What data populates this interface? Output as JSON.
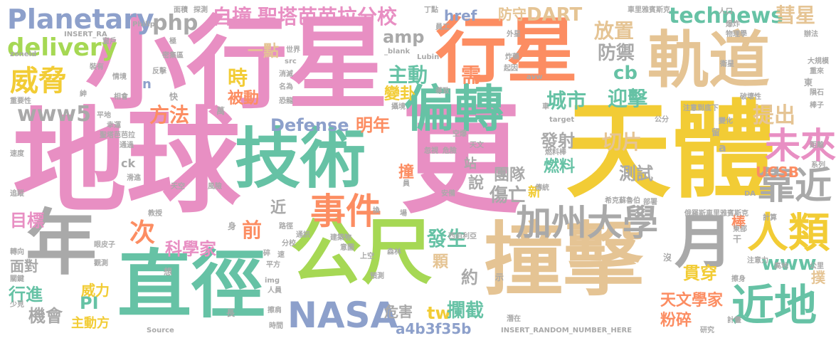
{
  "palette": {
    "pink": "#e88fc3",
    "green": "#66c2a5",
    "yellow": "#f2cc35",
    "orange": "#fc8d62",
    "tan": "#e5c494",
    "gray": "#a9a9a9",
    "blue": "#8da0cb",
    "lime": "#a6d854"
  },
  "words": [
    {
      "id": "w1",
      "text": "地球"
    },
    {
      "id": "w2",
      "text": "小行星"
    },
    {
      "id": "w3",
      "text": "行星"
    },
    {
      "id": "w4",
      "text": "天體"
    },
    {
      "id": "w5",
      "text": "軌道"
    },
    {
      "id": "w6",
      "text": "更"
    },
    {
      "id": "w7",
      "text": "撞擊"
    },
    {
      "id": "w8",
      "text": "公尺"
    },
    {
      "id": "w9",
      "text": "技術"
    },
    {
      "id": "w10",
      "text": "偏轉"
    },
    {
      "id": "w11",
      "text": "直徑"
    },
    {
      "id": "w12",
      "text": "年"
    },
    {
      "id": "w13",
      "text": "月"
    },
    {
      "id": "w14",
      "text": "近地"
    },
    {
      "id": "w15",
      "text": "人類"
    },
    {
      "id": "w16",
      "text": "NASA"
    },
    {
      "id": "w17",
      "text": "加州大學"
    },
    {
      "id": "w18",
      "text": "事件"
    },
    {
      "id": "w19",
      "text": "靠近"
    },
    {
      "id": "w20",
      "text": "未來"
    },
    {
      "id": "w21",
      "text": "Planetary"
    },
    {
      "id": "w22",
      "text": "威脅"
    },
    {
      "id": "w23",
      "text": "delivery"
    },
    {
      "id": "w24",
      "text": "www5"
    },
    {
      "id": "w25",
      "text": "自撞"
    },
    {
      "id": "w26",
      "text": "聖塔芭芭拉分校"
    },
    {
      "id": "w27",
      "text": "php"
    },
    {
      "id": "w28",
      "text": "DART"
    },
    {
      "id": "w29",
      "text": "technews"
    },
    {
      "id": "w30",
      "text": "彗星"
    },
    {
      "id": "w31",
      "text": "放置"
    },
    {
      "id": "w32",
      "text": "防禦"
    },
    {
      "id": "w33",
      "text": "amp"
    },
    {
      "id": "w34",
      "text": "href"
    },
    {
      "id": "w35",
      "text": "防守"
    },
    {
      "id": "w36",
      "text": "一點"
    },
    {
      "id": "w37",
      "text": "主動"
    },
    {
      "id": "w38",
      "text": "需"
    },
    {
      "id": "w39",
      "text": "cb"
    },
    {
      "id": "w40",
      "text": "迎擊"
    },
    {
      "id": "w41",
      "text": "提出"
    },
    {
      "id": "w42",
      "text": "時"
    },
    {
      "id": "w43",
      "text": "被動"
    },
    {
      "id": "w44",
      "text": "變卦"
    },
    {
      "id": "w45",
      "text": "城市"
    },
    {
      "id": "w46",
      "text": "方法"
    },
    {
      "id": "w47",
      "text": "Defense"
    },
    {
      "id": "w48",
      "text": "明年"
    },
    {
      "id": "w49",
      "text": "發射"
    },
    {
      "id": "w50",
      "text": "切片"
    },
    {
      "id": "w51",
      "text": "燃料"
    },
    {
      "id": "w52",
      "text": "測試"
    },
    {
      "id": "w53",
      "text": "團隊"
    },
    {
      "id": "w54",
      "text": "說"
    },
    {
      "id": "w55",
      "text": "傷亡"
    },
    {
      "id": "w56",
      "text": "新"
    },
    {
      "id": "w57",
      "text": "UCSB"
    },
    {
      "id": "w58",
      "text": "前"
    },
    {
      "id": "w59",
      "text": "次"
    },
    {
      "id": "w60",
      "text": "科學家"
    },
    {
      "id": "w61",
      "text": "近"
    },
    {
      "id": "w62",
      "text": "目標"
    },
    {
      "id": "w63",
      "text": "撞"
    },
    {
      "id": "w64",
      "text": "站"
    },
    {
      "id": "w65",
      "text": "發生"
    },
    {
      "id": "w66",
      "text": "顆"
    },
    {
      "id": "w67",
      "text": "約"
    },
    {
      "id": "w68",
      "text": "棒"
    },
    {
      "id": "w69",
      "text": "貫穿"
    },
    {
      "id": "w70",
      "text": "www"
    },
    {
      "id": "w71",
      "text": "撲"
    },
    {
      "id": "w72",
      "text": "天文學家"
    },
    {
      "id": "w73",
      "text": "粉碎"
    },
    {
      "id": "w74",
      "text": "危害"
    },
    {
      "id": "w75",
      "text": "tw"
    },
    {
      "id": "w76",
      "text": "攔截"
    },
    {
      "id": "w77",
      "text": "a4b3f35b"
    },
    {
      "id": "w78",
      "text": "面對"
    },
    {
      "id": "w79",
      "text": "行進"
    },
    {
      "id": "w80",
      "text": "PI"
    },
    {
      "id": "w81",
      "text": "威力"
    },
    {
      "id": "w82",
      "text": "機會"
    },
    {
      "id": "w83",
      "text": "主動方"
    },
    {
      "id": "w84",
      "text": "ck"
    },
    {
      "id": "w85",
      "text": "n"
    },
    {
      "id": "w86",
      "text": "a"
    },
    {
      "id": "w87",
      "text": "INSERT_RA"
    },
    {
      "id": "w88",
      "text": "zoneid"
    },
    {
      "id": "w89",
      "text": "Philip"
    },
    {
      "id": "w90",
      "text": "面積"
    },
    {
      "id": "w91",
      "text": "探測"
    },
    {
      "id": "w92",
      "text": "車里雅賓斯克"
    },
    {
      "id": "w93",
      "text": "人口"
    },
    {
      "id": "w94",
      "text": "物理學"
    },
    {
      "id": "w95",
      "text": "辦法"
    },
    {
      "id": "w96",
      "text": "大規模"
    },
    {
      "id": "w97",
      "text": "重來"
    },
    {
      "id": "w98",
      "text": "衛星"
    },
    {
      "id": "w99",
      "text": "隕石"
    },
    {
      "id": "w100",
      "text": "棒子"
    },
    {
      "id": "w101",
      "text": "距離"
    },
    {
      "id": "w102",
      "text": "系列"
    },
    {
      "id": "w103",
      "text": "_blank"
    },
    {
      "id": "w104",
      "text": "Lubin"
    },
    {
      "id": "w105",
      "text": "src"
    },
    {
      "id": "w106",
      "text": "世界"
    },
    {
      "id": "w107",
      "text": "密集區"
    },
    {
      "id": "w108",
      "text": "窗戶"
    },
    {
      "id": "w109",
      "text": "裝有"
    },
    {
      "id": "w110",
      "text": "情境"
    },
    {
      "id": "w111",
      "text": "反擊"
    },
    {
      "id": "w112",
      "text": "消滅"
    },
    {
      "id": "w113",
      "text": "名為"
    },
    {
      "id": "w114",
      "text": "重要性"
    },
    {
      "id": "w115",
      "text": "相會"
    },
    {
      "id": "w116",
      "text": "平地"
    },
    {
      "id": "w117",
      "text": "幸運"
    },
    {
      "id": "w118",
      "text": "聖塔芭芭拉"
    },
    {
      "id": "w119",
      "text": "通過"
    },
    {
      "id": "w120",
      "text": "速度"
    },
    {
      "id": "w121",
      "text": "滑進"
    },
    {
      "id": "w122",
      "text": "追蹤"
    },
    {
      "id": "w123",
      "text": "天空"
    },
    {
      "id": "w124",
      "text": "風險"
    },
    {
      "id": "w125",
      "text": "教授"
    },
    {
      "id": "w126",
      "text": "路徑"
    },
    {
      "id": "w127",
      "text": "通訊"
    },
    {
      "id": "w128",
      "text": "建築物"
    },
    {
      "id": "w129",
      "text": "西伯利亞"
    },
    {
      "id": "w130",
      "text": "眼皮子"
    },
    {
      "id": "w131",
      "text": "轉向"
    },
    {
      "id": "w132",
      "text": "觀測"
    },
    {
      "id": "w133",
      "text": "平方"
    },
    {
      "id": "w134",
      "text": "森林"
    },
    {
      "id": "w135",
      "text": "預測"
    },
    {
      "id": "w136",
      "text": "關鍵"
    },
    {
      "id": "w137",
      "text": "少見"
    },
    {
      "id": "w138",
      "text": "Source"
    },
    {
      "id": "w139",
      "text": "img"
    },
    {
      "id": "w140",
      "text": "人員"
    },
    {
      "id": "w141",
      "text": "擦肩"
    },
    {
      "id": "w142",
      "text": "時間"
    },
    {
      "id": "w143",
      "text": "INSERT_RANDOM_NUMBER_HERE"
    },
    {
      "id": "w144",
      "text": "研究"
    },
    {
      "id": "w145",
      "text": "計畫"
    },
    {
      "id": "w146",
      "text": "擦身"
    },
    {
      "id": "w147",
      "text": "注意力"
    },
    {
      "id": "w148",
      "text": "公里"
    },
    {
      "id": "w149",
      "text": "高地"
    },
    {
      "id": "w150",
      "text": "俄羅斯車里雅賓斯克"
    },
    {
      "id": "w151",
      "text": "希克蘇魯伯"
    },
    {
      "id": "w152",
      "text": "部署"
    },
    {
      "id": "w153",
      "text": "東部"
    },
    {
      "id": "w154",
      "text": "計算"
    },
    {
      "id": "w155",
      "text": "注意到底下"
    },
    {
      "id": "w156",
      "text": "破壞性"
    },
    {
      "id": "w157",
      "text": "變化"
    },
    {
      "id": "w158",
      "text": "公分"
    },
    {
      "id": "w159",
      "text": "target"
    },
    {
      "id": "w160",
      "text": "燃料棒"
    },
    {
      "id": "w161",
      "text": "忽視"
    },
    {
      "id": "w162",
      "text": "危險"
    },
    {
      "id": "w163",
      "text": "攝境"
    },
    {
      "id": "w164",
      "text": "導致"
    },
    {
      "id": "w165",
      "text": "炸藥"
    },
    {
      "id": "w166",
      "text": "起因"
    },
    {
      "id": "w167",
      "text": "avw"
    },
    {
      "id": "w168",
      "text": "外星"
    },
    {
      "id": "w169",
      "text": "丁點"
    },
    {
      "id": "w170",
      "text": "空爆"
    },
    {
      "id": "w171",
      "text": "天文"
    },
    {
      "id": "w172",
      "text": "傳統"
    },
    {
      "id": "w173",
      "text": "安備"
    },
    {
      "id": "w174",
      "text": "上空"
    },
    {
      "id": "w175",
      "text": "意圖"
    },
    {
      "id": "w176",
      "text": "恐龍"
    },
    {
      "id": "w177",
      "text": "爆炸"
    },
    {
      "id": "w178",
      "text": "DA"
    },
    {
      "id": "w179",
      "text": "示"
    },
    {
      "id": "w180",
      "text": "沒"
    },
    {
      "id": "w181",
      "text": "干"
    },
    {
      "id": "w182",
      "text": "留"
    },
    {
      "id": "w183",
      "text": "想"
    },
    {
      "id": "w184",
      "text": "快"
    },
    {
      "id": "w185",
      "text": "萬"
    },
    {
      "id": "w186",
      "text": "長"
    },
    {
      "id": "w187",
      "text": "身"
    },
    {
      "id": "w188",
      "text": "分校"
    },
    {
      "id": "w189",
      "text": "碎"
    },
    {
      "id": "w190",
      "text": "速"
    },
    {
      "id": "w191",
      "text": "換"
    },
    {
      "id": "w192",
      "text": "場"
    },
    {
      "id": "w193",
      "text": "潛在"
    },
    {
      "id": "w194",
      "text": "車"
    },
    {
      "id": "w195",
      "text": "員"
    },
    {
      "id": "w196",
      "text": "極"
    },
    {
      "id": "w197",
      "text": "東"
    },
    {
      "id": "w198",
      "text": "紳"
    },
    {
      "id": "w199",
      "text": "員工"
    }
  ]
}
